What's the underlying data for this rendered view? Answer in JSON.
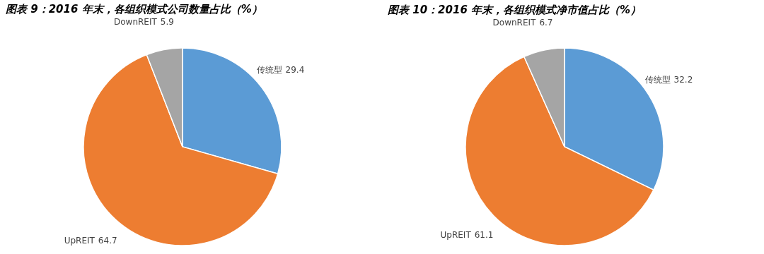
{
  "chart_data": [
    {
      "type": "pie",
      "title": "图表 9：2016 年末，各组织模式公司数量占比（%）",
      "categories": [
        "传统型",
        "UpREIT",
        "DownREIT"
      ],
      "values": [
        29.4,
        64.7,
        5.9
      ],
      "colors": [
        "#5b9bd5",
        "#ed7d31",
        "#a5a5a5"
      ],
      "data_labels": true
    },
    {
      "type": "pie",
      "title": "图表 10：2016 年末，各组织模式净市值占比（%）",
      "categories": [
        "传统型",
        "UpREIT",
        "DownREIT"
      ],
      "values": [
        32.2,
        61.1,
        6.7
      ],
      "colors": [
        "#5b9bd5",
        "#ed7d31",
        "#a5a5a5"
      ],
      "data_labels": true
    }
  ]
}
